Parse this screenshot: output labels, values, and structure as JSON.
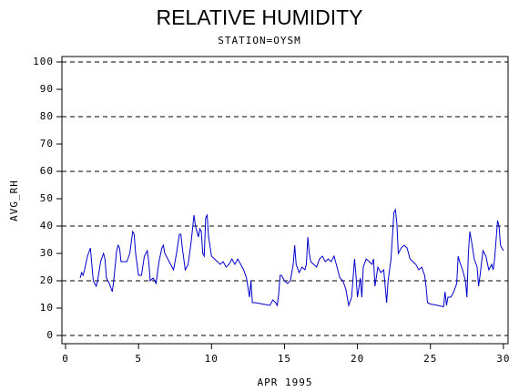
{
  "chart_data": {
    "type": "line",
    "title": "RELATIVE HUMIDITY",
    "subtitle": "STATION=OYSM",
    "x_label": "APR 1995",
    "y_label": "AVG_RH",
    "xlim": [
      -0.25,
      30.32
    ],
    "ylim": [
      -3,
      102
    ],
    "xticks": [
      0,
      5,
      10,
      15,
      20,
      25,
      30
    ],
    "yticks": [
      0,
      10,
      20,
      30,
      40,
      50,
      60,
      70,
      80,
      90,
      100
    ],
    "ygrid": [
      0,
      20,
      40,
      60,
      80,
      100
    ],
    "series": [
      {
        "color": "#0000cc",
        "x": [
          1.0,
          1.1,
          1.2,
          1.3,
          1.5,
          1.7,
          1.8,
          1.9,
          2.0,
          2.1,
          2.2,
          2.4,
          2.6,
          2.7,
          2.8,
          3.0,
          3.2,
          3.3,
          3.5,
          3.6,
          3.7,
          3.8,
          4.0,
          4.2,
          4.4,
          4.6,
          4.7,
          4.8,
          5.0,
          5.2,
          5.4,
          5.6,
          5.7,
          5.8,
          6.0,
          6.2,
          6.4,
          6.6,
          6.7,
          6.8,
          7.0,
          7.2,
          7.4,
          7.6,
          7.8,
          7.9,
          8.0,
          8.2,
          8.4,
          8.6,
          8.8,
          8.9,
          9.1,
          9.2,
          9.3,
          9.4,
          9.5,
          9.6,
          9.7,
          9.8,
          10.0,
          10.2,
          10.4,
          10.6,
          10.8,
          11.0,
          11.2,
          11.4,
          11.6,
          11.8,
          12.0,
          12.2,
          12.4,
          12.6,
          12.7,
          12.8,
          13.0,
          13.5,
          14.0,
          14.2,
          14.4,
          14.5,
          14.6,
          14.7,
          14.8,
          15.0,
          15.2,
          15.4,
          15.6,
          15.7,
          15.8,
          16.0,
          16.2,
          16.4,
          16.5,
          16.6,
          16.7,
          16.8,
          17.0,
          17.2,
          17.4,
          17.6,
          17.8,
          18.0,
          18.2,
          18.4,
          18.6,
          18.8,
          19.0,
          19.2,
          19.4,
          19.6,
          19.8,
          19.9,
          20.0,
          20.2,
          20.3,
          20.4,
          20.6,
          20.8,
          21.0,
          21.1,
          21.2,
          21.4,
          21.6,
          21.8,
          22.0,
          22.1,
          22.3,
          22.5,
          22.6,
          22.7,
          22.8,
          23.0,
          23.2,
          23.4,
          23.6,
          23.8,
          24.0,
          24.2,
          24.4,
          24.6,
          24.7,
          24.8,
          25.0,
          25.5,
          25.9,
          26.0,
          26.1,
          26.2,
          26.4,
          26.6,
          26.8,
          26.9,
          27.0,
          27.2,
          27.4,
          27.5,
          27.6,
          27.7,
          27.8,
          28.0,
          28.2,
          28.3,
          28.4,
          28.6,
          28.8,
          29.0,
          29.2,
          29.3,
          29.4,
          29.6,
          29.7,
          29.8,
          30.0
        ],
        "values": [
          21,
          23,
          22,
          24,
          29,
          32,
          26,
          20,
          19,
          18,
          20,
          27,
          30,
          28,
          21,
          19,
          16,
          20,
          31,
          33,
          32,
          27,
          27,
          27,
          30,
          38,
          37,
          30,
          22,
          22,
          29,
          31,
          27,
          20,
          21,
          19,
          27,
          32,
          33,
          30,
          28,
          26,
          24,
          30,
          37,
          37,
          32,
          24,
          26,
          34,
          44,
          40,
          36,
          39,
          38,
          30,
          29,
          43,
          44,
          36,
          29,
          28,
          27,
          26,
          27,
          25,
          26,
          28,
          26,
          28,
          26,
          24,
          21,
          14,
          20,
          12,
          12,
          11.5,
          11,
          13,
          12,
          11,
          15,
          22,
          22,
          20,
          19,
          20,
          26,
          33,
          26,
          23,
          25,
          24,
          26,
          36,
          30,
          27,
          26,
          25,
          28,
          29,
          27,
          28,
          27,
          29,
          25,
          21,
          20,
          17,
          11,
          14,
          28,
          22,
          14,
          21,
          14,
          25,
          28,
          27,
          26,
          28,
          18,
          25,
          23,
          24,
          12,
          20,
          28,
          45,
          46,
          41,
          30,
          32,
          33,
          32,
          28,
          27,
          26,
          24,
          25,
          22,
          18,
          12,
          11.5,
          11,
          10.5,
          16,
          11,
          14,
          14,
          16,
          19,
          29,
          27,
          24,
          20,
          14,
          30,
          38,
          35,
          28,
          25,
          18,
          22,
          31,
          29,
          24,
          26,
          24,
          28,
          42,
          40,
          33,
          31
        ]
      }
    ]
  }
}
